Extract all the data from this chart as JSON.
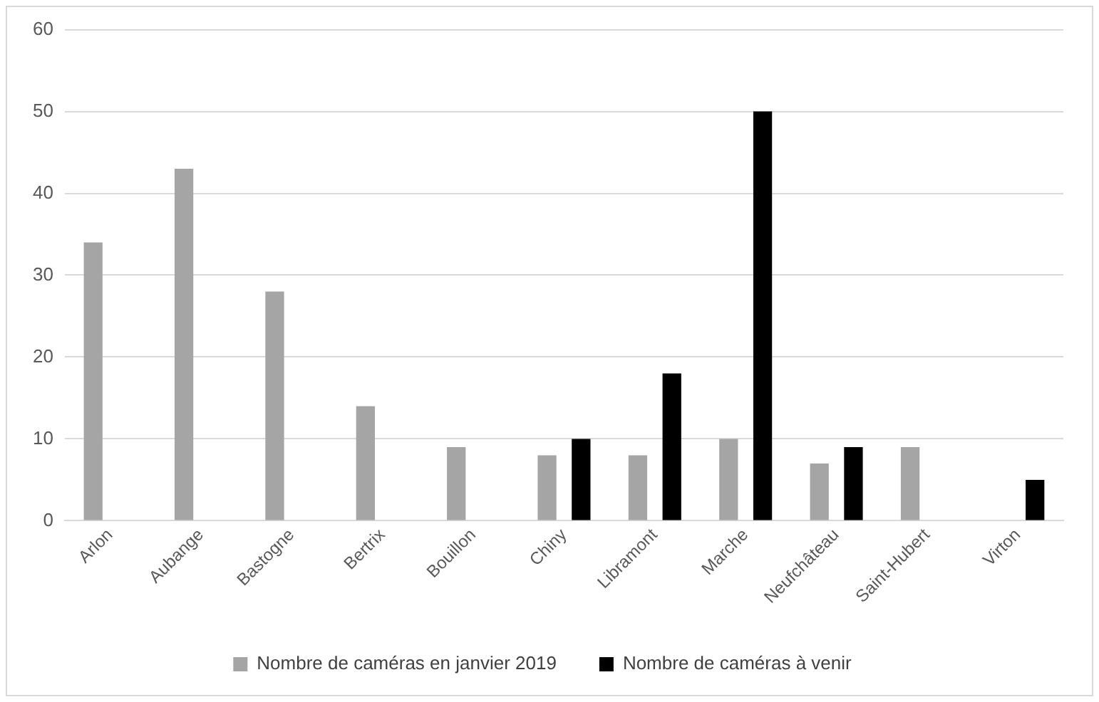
{
  "chart_data": {
    "type": "bar",
    "categories": [
      "Arlon",
      "Aubange",
      "Bastogne",
      "Bertrix",
      "Bouillon",
      "Chiny",
      "Libramont",
      "Marche",
      "Neufchâteau",
      "Saint-Hubert",
      "Virton"
    ],
    "series": [
      {
        "name": "Nombre de caméras en janvier 2019",
        "color": "#a5a5a5",
        "values": [
          34,
          43,
          28,
          14,
          9,
          8,
          8,
          10,
          7,
          9,
          null
        ]
      },
      {
        "name": "Nombre de caméras à venir",
        "color": "#000000",
        "values": [
          null,
          null,
          null,
          null,
          null,
          10,
          18,
          50,
          9,
          null,
          5
        ]
      }
    ],
    "ylim": [
      0,
      60
    ],
    "yticks": [
      0,
      10,
      20,
      30,
      40,
      50,
      60
    ],
    "grid": "y",
    "legend": "bottom"
  }
}
